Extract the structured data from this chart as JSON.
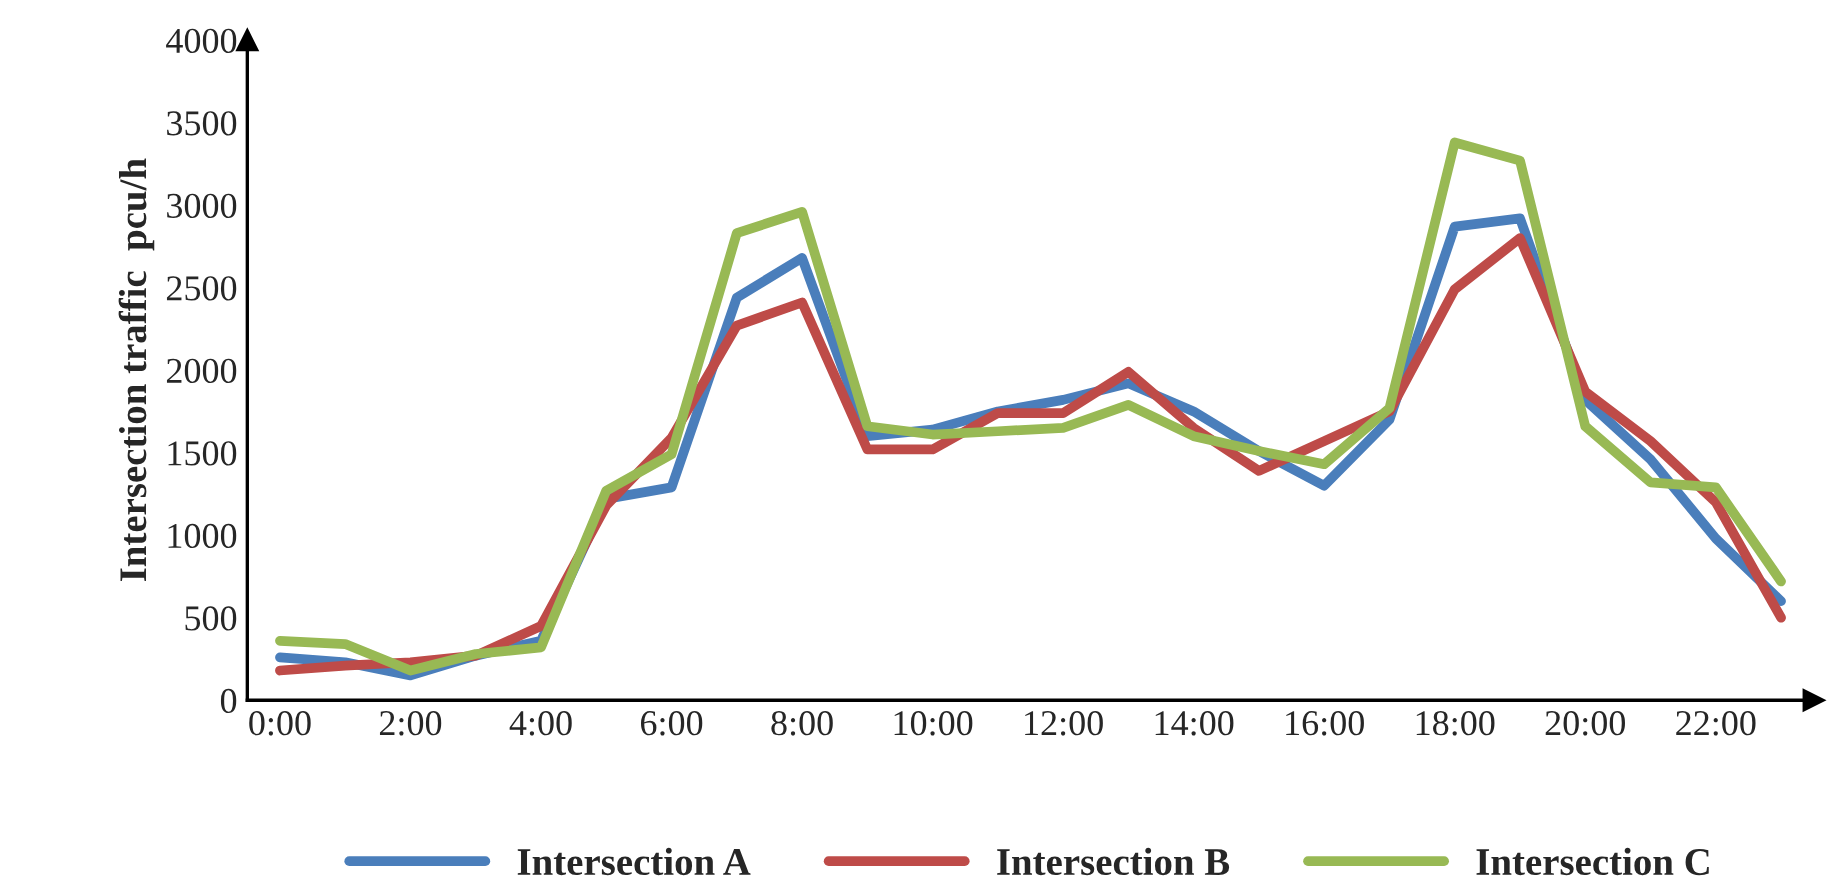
{
  "chart_data": {
    "type": "line",
    "ylabel": "Intersection traffic  pcu/h",
    "categories": [
      "0:00",
      null,
      "2:00",
      null,
      "4:00",
      null,
      "6:00",
      null,
      "8:00",
      null,
      "10:00",
      null,
      "12:00",
      null,
      "14:00",
      null,
      "16:00",
      null,
      "18:00",
      null,
      "20:00",
      null,
      "22:00",
      null
    ],
    "series": [
      {
        "name": "Intersection A",
        "color": "#4a7ebb",
        "values": [
          260,
          230,
          150,
          270,
          360,
          1220,
          1290,
          2440,
          2680,
          1600,
          1640,
          1750,
          1820,
          1920,
          1750,
          1510,
          1300,
          1700,
          2870,
          2920,
          1820,
          1460,
          980,
          600
        ]
      },
      {
        "name": "Intersection B",
        "color": "#be4b48",
        "values": [
          180,
          210,
          230,
          270,
          450,
          1180,
          1590,
          2270,
          2410,
          1520,
          1520,
          1740,
          1740,
          1990,
          1650,
          1390,
          1570,
          1750,
          2490,
          2800,
          1870,
          1570,
          1200,
          500
        ]
      },
      {
        "name": "Intersection C",
        "color": "#98b954",
        "values": [
          360,
          340,
          180,
          280,
          320,
          1270,
          1490,
          2830,
          2960,
          1660,
          1610,
          1630,
          1650,
          1790,
          1600,
          1510,
          1430,
          1770,
          3380,
          3270,
          1660,
          1320,
          1290,
          720
        ]
      }
    ],
    "ylim": [
      0,
      4000
    ],
    "yticks": [
      0,
      500,
      1000,
      1500,
      2000,
      2500,
      3000,
      3500,
      4000
    ],
    "grid": false,
    "legend": "bottom",
    "marker": "none",
    "line_style": "solid"
  }
}
